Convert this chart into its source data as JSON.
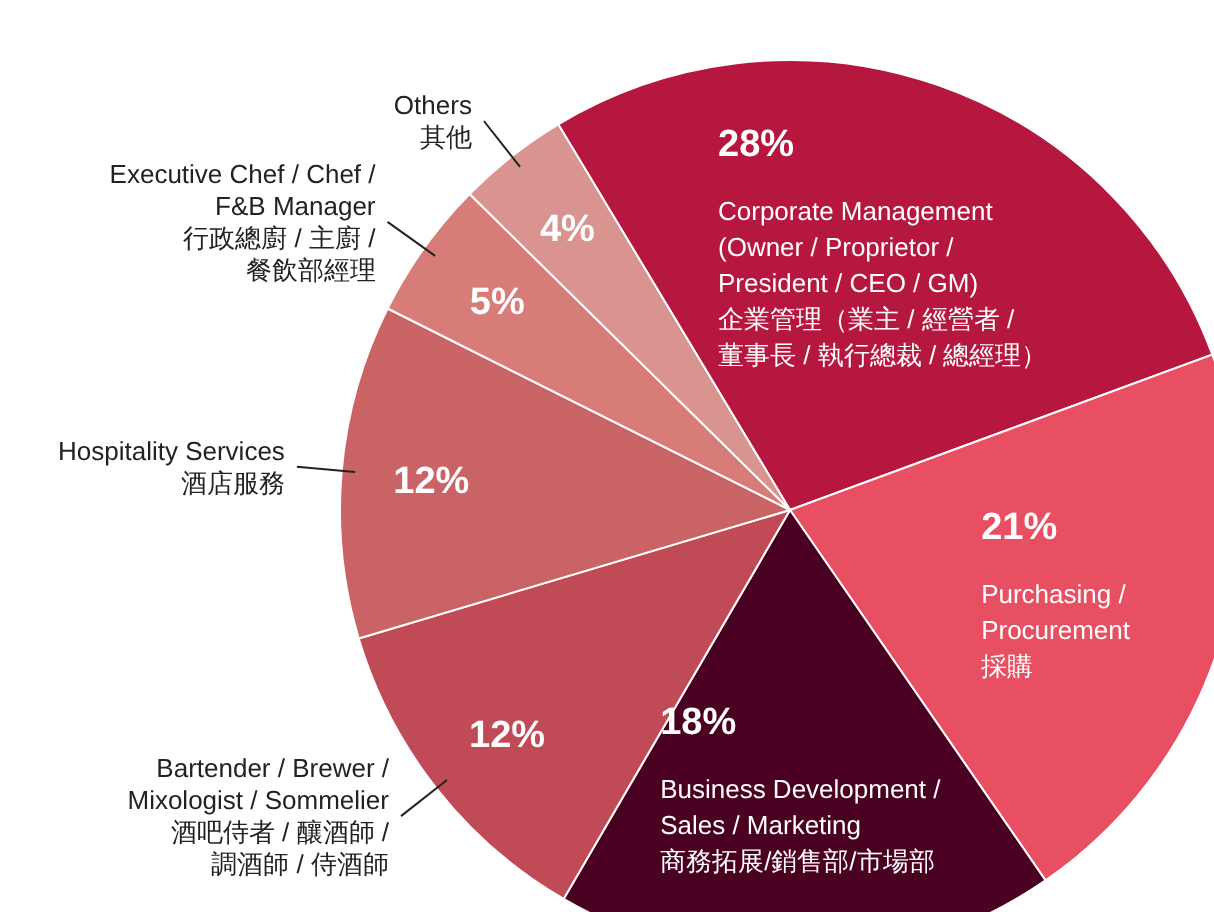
{
  "chart_data": {
    "type": "pie",
    "categories": [
      "Corporate Management\n(Owner / Proprietor /\nPresident / CEO / GM)\n企業管理（業主 / 經營者 /\n董事長 / 執行總裁 / 總經理）",
      "Purchasing /\nProcurement\n採購",
      "Business Development /\nSales / Marketing\n商務拓展/銷售部/市場部",
      "Bartender / Brewer /\nMixologist / Sommelier\n酒吧侍者 / 釀酒師 /\n調酒師 / 侍酒師",
      "Hospitality Services\n酒店服務",
      "Executive Chef / Chef /\nF&B Manager\n行政總廚 / 主廚 /\n餐飲部經理",
      "Others\n其他"
    ],
    "values": [
      28,
      21,
      18,
      12,
      12,
      5,
      4
    ],
    "value_labels": [
      "28%",
      "21%",
      "18%",
      "12%",
      "12%",
      "5%",
      "4%"
    ],
    "colors": [
      "#b5173f",
      "#e84f62",
      "#4a0020",
      "#c04a55",
      "#c96365",
      "#d77c78",
      "#d99490"
    ]
  }
}
